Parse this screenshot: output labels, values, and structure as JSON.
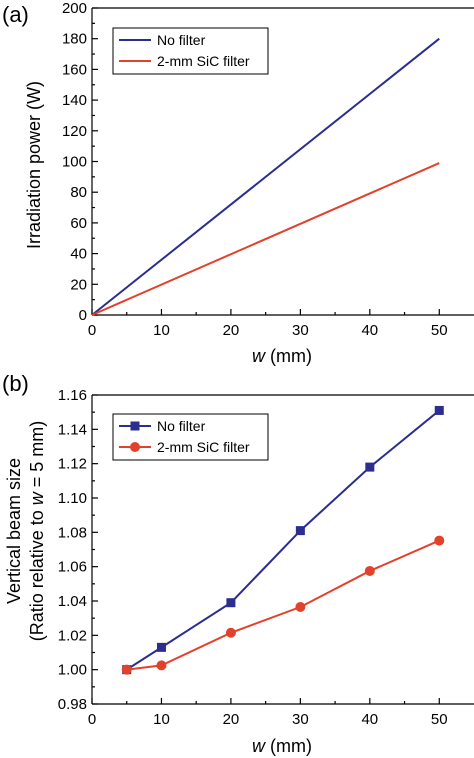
{
  "chart_data": [
    {
      "type": "line",
      "panel_label": "(a)",
      "xlabel_var": "w",
      "xlabel_unit": " (mm)",
      "ylabel": "Irradiation power (W)",
      "xlim": [
        0,
        55
      ],
      "ylim": [
        0,
        200
      ],
      "xticks": [
        0,
        10,
        20,
        30,
        40,
        50
      ],
      "yticks": [
        0,
        20,
        40,
        60,
        80,
        100,
        120,
        140,
        160,
        180,
        200
      ],
      "grid": false,
      "legend": "top-left",
      "series": [
        {
          "name": "No filter",
          "color": "#2b2d8f",
          "marker": "none",
          "x": [
            0,
            50
          ],
          "y": [
            0,
            180
          ]
        },
        {
          "name": "2-mm SiC filter",
          "color": "#e2412b",
          "marker": "none",
          "x": [
            0,
            50
          ],
          "y": [
            0,
            99
          ]
        }
      ]
    },
    {
      "type": "line",
      "panel_label": "(b)",
      "xlabel_var": "w",
      "xlabel_unit": " (mm)",
      "ylabel_line1": "Vertical beam size",
      "ylabel_line2_prefix": "(Ratio relative to ",
      "ylabel_line2_var": "w",
      "ylabel_line2_suffix": " = 5 mm)",
      "xlim": [
        0,
        55
      ],
      "ylim": [
        0.98,
        1.16
      ],
      "xticks": [
        0,
        10,
        20,
        30,
        40,
        50
      ],
      "yticks": [
        "0.98",
        "1.00",
        "1.02",
        "1.04",
        "1.06",
        "1.08",
        "1.10",
        "1.12",
        "1.14",
        "1.16"
      ],
      "grid": false,
      "legend": "top-left",
      "series": [
        {
          "name": "No filter",
          "color": "#2b2d8f",
          "marker": "square",
          "x": [
            5,
            10,
            20,
            30,
            40,
            50
          ],
          "y": [
            1.0,
            1.013,
            1.039,
            1.081,
            1.118,
            1.151
          ]
        },
        {
          "name": "2-mm SiC filter",
          "color": "#e2412b",
          "marker": "circle",
          "x": [
            5,
            10,
            20,
            30,
            40,
            50
          ],
          "y": [
            1.0,
            1.0025,
            1.0215,
            1.0365,
            1.0575,
            1.0752
          ]
        }
      ]
    }
  ]
}
